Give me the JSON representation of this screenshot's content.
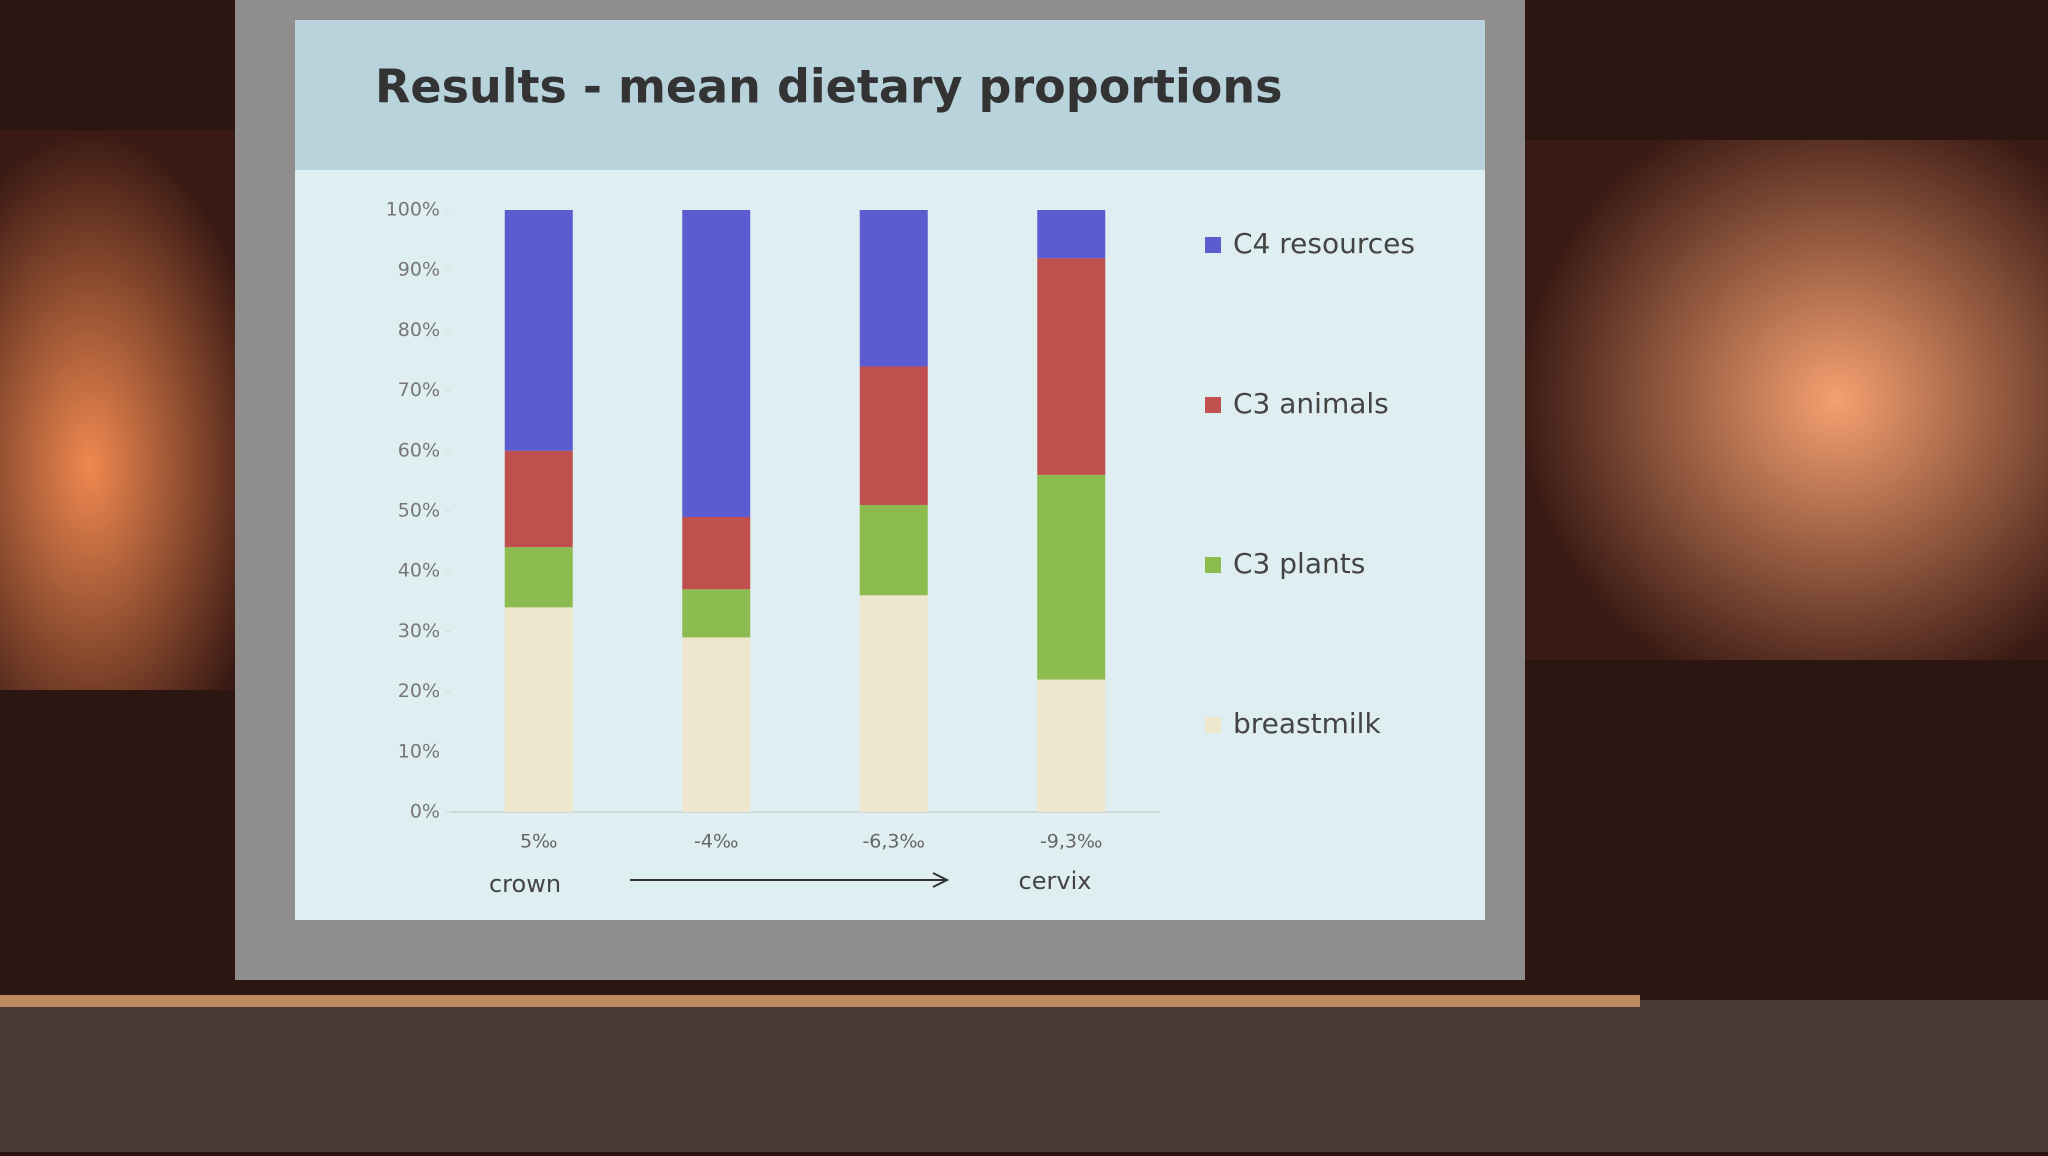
{
  "chart_data": {
    "type": "stacked_bar",
    "title": "Results - mean dietary proportions",
    "categories": [
      "5‰",
      "-4‰",
      "-6,3‰",
      "-9,3‰"
    ],
    "series": [
      {
        "name": "breastmilk",
        "color": "#efe7cd",
        "values": [
          34,
          29,
          36,
          22
        ]
      },
      {
        "name": "C3 plants",
        "color": "#8cbb4f",
        "values": [
          10,
          8,
          15,
          34
        ]
      },
      {
        "name": "C3 animals",
        "color": "#c0504d",
        "values": [
          16,
          12,
          23,
          36
        ]
      },
      {
        "name": "C4 resources",
        "color": "#5a5ccf",
        "values": [
          40,
          51,
          26,
          8
        ]
      }
    ],
    "ylim": [
      0,
      100
    ],
    "yticks": [
      {
        "value": 0,
        "label": "0%"
      },
      {
        "value": 10,
        "label": "10%"
      },
      {
        "value": 20,
        "label": "20%"
      },
      {
        "value": 30,
        "label": "30%"
      },
      {
        "value": 40,
        "label": "40%"
      },
      {
        "value": 50,
        "label": "50%"
      },
      {
        "value": 60,
        "label": "60%"
      },
      {
        "value": 70,
        "label": "70%"
      },
      {
        "value": 80,
        "label": "80%"
      },
      {
        "value": 90,
        "label": "90%"
      },
      {
        "value": 100,
        "label": "100%"
      }
    ],
    "annotations": [
      "crown",
      "cervix"
    ],
    "legend": "right"
  }
}
